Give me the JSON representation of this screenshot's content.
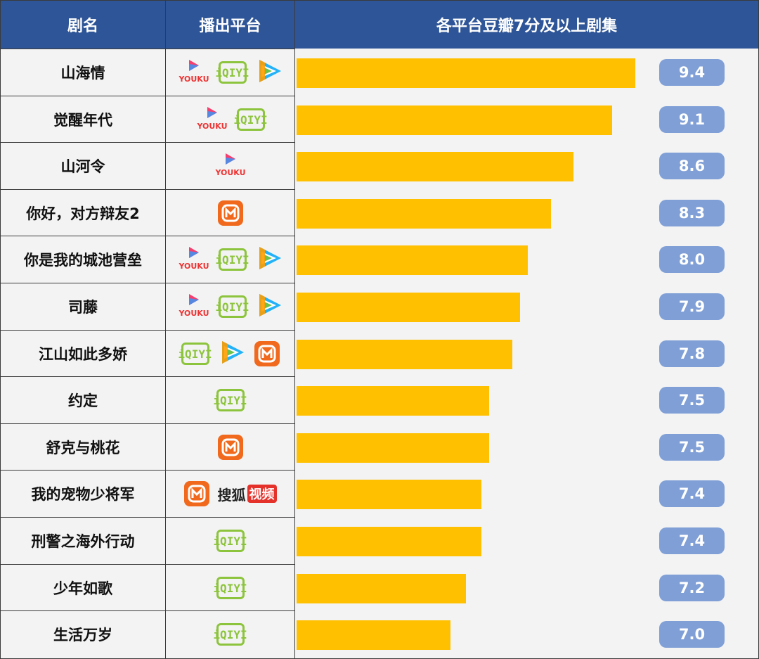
{
  "table": {
    "headers": {
      "name": "剧名",
      "platform": "播出平台",
      "chart": "各平台豆瓣7分及以上剧集"
    }
  },
  "chart_data": {
    "type": "bar",
    "orientation": "horizontal",
    "title": "各平台豆瓣7分及以上剧集",
    "categories": [
      "山海情",
      "觉醒年代",
      "山河令",
      "你好，对方辩友2",
      "你是我的城池营垒",
      "司藤",
      "江山如此多娇",
      "约定",
      "舒克与桃花",
      "我的宠物少将军",
      "刑警之海外行动",
      "少年如歌",
      "生活万岁"
    ],
    "values": [
      9.4,
      9.1,
      8.6,
      8.3,
      8.0,
      7.9,
      7.8,
      7.5,
      7.5,
      7.4,
      7.4,
      7.2,
      7.0
    ],
    "value_labels": [
      "9.4",
      "9.1",
      "8.6",
      "8.3",
      "8.0",
      "7.9",
      "7.8",
      "7.5",
      "7.5",
      "7.4",
      "7.4",
      "7.2",
      "7.0"
    ],
    "xlim": [
      5.0,
      9.4
    ],
    "bar_color": "#ffc000",
    "badge_color": "#7f9fd6",
    "header_color": "#2e5597"
  },
  "platforms": [
    [
      "youku-icon",
      "iqiyi-icon",
      "tencent-video-icon"
    ],
    [
      "youku-icon",
      "iqiyi-icon"
    ],
    [
      "youku-icon"
    ],
    [
      "mgtv-icon"
    ],
    [
      "youku-icon",
      "iqiyi-icon",
      "tencent-video-icon"
    ],
    [
      "youku-icon",
      "iqiyi-icon",
      "tencent-video-icon"
    ],
    [
      "iqiyi-icon",
      "tencent-video-icon",
      "mgtv-icon"
    ],
    [
      "iqiyi-icon"
    ],
    [
      "mgtv-icon"
    ],
    [
      "mgtv-icon",
      "sohu-video-icon"
    ],
    [
      "iqiyi-icon"
    ],
    [
      "iqiyi-icon"
    ],
    [
      "iqiyi-icon"
    ]
  ],
  "logo_text": {
    "youku": "YOUKU",
    "iqiyi": "iQIYI",
    "sohu": "搜狐",
    "sohu_tag": "视频"
  }
}
